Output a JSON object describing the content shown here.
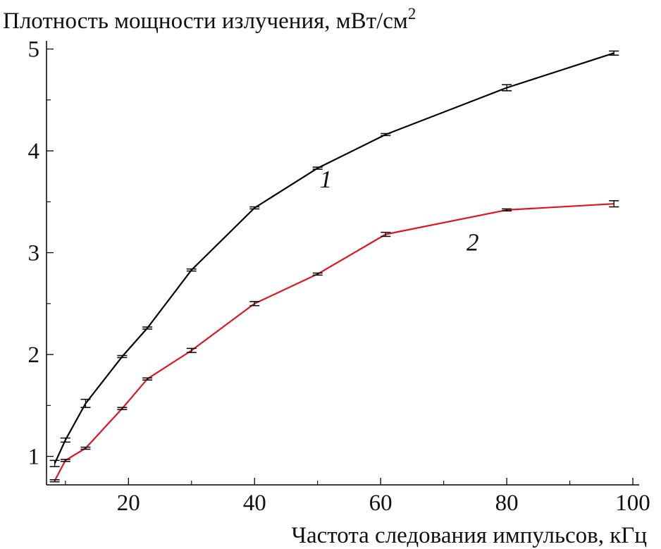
{
  "chart_data": {
    "type": "line",
    "ylabel": "Плотность мощности излучения, мВт/см",
    "ylabel_sup": "2",
    "xlabel": "Частота следования импульсов, кГц",
    "xlim": [
      7,
      101
    ],
    "ylim": [
      0.72,
      5.08
    ],
    "x_ticks": [
      20,
      40,
      60,
      80,
      100
    ],
    "x_minor_ticks": [
      10,
      30,
      50,
      70,
      90
    ],
    "y_ticks": [
      1,
      2,
      3,
      4,
      5
    ],
    "y_minor_ticks": [
      1.5,
      2.5,
      3.5,
      4.5
    ],
    "grid": false,
    "series": [
      {
        "name": "1",
        "color": "#000000",
        "x": [
          8.3,
          10.0,
          13.2,
          19.0,
          23.0,
          30.0,
          40.0,
          50.0,
          60.8,
          80.0,
          97.0
        ],
        "y": [
          0.93,
          1.16,
          1.52,
          1.98,
          2.26,
          2.83,
          3.44,
          3.83,
          4.16,
          4.62,
          4.96
        ],
        "err": [
          0.03,
          0.02,
          0.04,
          0.01,
          0.01,
          0.01,
          0.01,
          0.01,
          0.01,
          0.03,
          0.02
        ]
      },
      {
        "name": "2",
        "color": "#e0151f",
        "x": [
          8.3,
          10.0,
          13.2,
          19.0,
          23.0,
          30.0,
          40.0,
          50.0,
          60.8,
          80.0,
          97.0
        ],
        "y": [
          0.76,
          0.96,
          1.08,
          1.47,
          1.76,
          2.04,
          2.5,
          2.79,
          3.18,
          3.42,
          3.48
        ],
        "err": [
          0.01,
          0.01,
          0.01,
          0.01,
          0.01,
          0.02,
          0.02,
          0.01,
          0.02,
          0.01,
          0.03
        ]
      }
    ],
    "annotations": [
      {
        "text": "1",
        "x": 51.3,
        "y": 3.64
      },
      {
        "text": "2",
        "x": 74.6,
        "y": 3.02
      }
    ]
  }
}
